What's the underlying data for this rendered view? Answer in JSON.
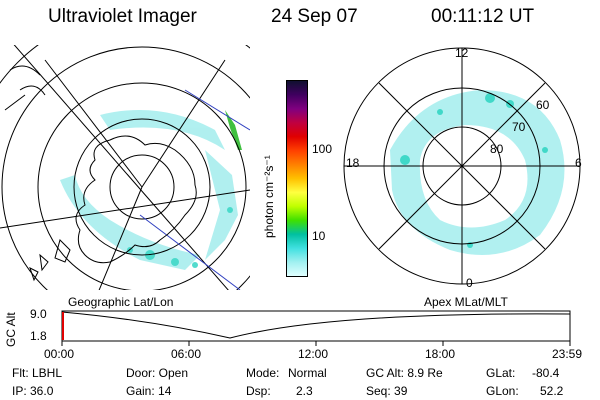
{
  "header": {
    "instrument": "Ultraviolet Imager",
    "date": "24 Sep 07",
    "time": "00:11:12 UT"
  },
  "colorbar": {
    "unit_label": "photon cm⁻²s⁻¹",
    "ticks": [
      "100",
      "10"
    ],
    "colors": [
      "#101030",
      "#400060",
      "#800080",
      "#c00040",
      "#e00000",
      "#ff4000",
      "#ff8000",
      "#ffc000",
      "#ffff40",
      "#c0ff00",
      "#40e000",
      "#00c0a0",
      "#40e0e0",
      "#a0f0f0",
      "#e0ffff"
    ]
  },
  "left_panel": {
    "label": "Geographic Lat/Lon"
  },
  "right_panel": {
    "label": "Apex MLat/MLT",
    "mlt_labels": {
      "top": "12",
      "left": "18",
      "right": "6",
      "bottom": "0"
    },
    "lat_labels": [
      "60",
      "70",
      "80"
    ]
  },
  "timeline": {
    "ylabel": "GC Alt",
    "y_ticks": [
      "9.0",
      "1.8"
    ],
    "x_ticks": [
      "00:00",
      "06:00",
      "12:00",
      "18:00",
      "23:59"
    ]
  },
  "status": {
    "flt": "Flt: LBHL",
    "ip": "IP: 36.0",
    "door": "Door: Open",
    "gain": "Gain: 14",
    "mode_label": "Mode:",
    "mode_value": "Normal",
    "dsp_label": "Dsp:",
    "dsp_value": "2.3",
    "gc_alt": "GC Alt: 8.9 Re",
    "seq": "Seq: 39",
    "glat_label": "GLat:",
    "glat_value": "-80.4",
    "glon_label": "GLon:",
    "glon_value": "52.2"
  }
}
